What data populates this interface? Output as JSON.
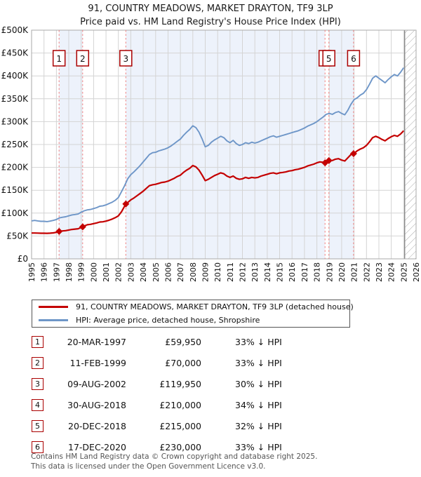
{
  "title": {
    "line1": "91, COUNTRY MEADOWS, MARKET DRAYTON, TF9 3LP",
    "line2": "Price paid vs. HM Land Registry's House Price Index (HPI)"
  },
  "legend": {
    "entries": [
      {
        "label": "91, COUNTRY MEADOWS, MARKET DRAYTON, TF9 3LP (detached house)",
        "color": "#c40000"
      },
      {
        "label": "HPI: Average price, detached house, Shropshire",
        "color": "#6e96c8"
      }
    ]
  },
  "transactions": [
    {
      "n": "1",
      "date": "20-MAR-1997",
      "price": "£59,950",
      "pct": "33% ↓ HPI"
    },
    {
      "n": "2",
      "date": "11-FEB-1999",
      "price": "£70,000",
      "pct": "33% ↓ HPI"
    },
    {
      "n": "3",
      "date": "09-AUG-2002",
      "price": "£119,950",
      "pct": "30% ↓ HPI"
    },
    {
      "n": "4",
      "date": "30-AUG-2018",
      "price": "£210,000",
      "pct": "34% ↓ HPI"
    },
    {
      "n": "5",
      "date": "20-DEC-2018",
      "price": "£215,000",
      "pct": "32% ↓ HPI"
    },
    {
      "n": "6",
      "date": "17-DEC-2020",
      "price": "£230,000",
      "pct": "33% ↓ HPI"
    }
  ],
  "footer": {
    "line1": "Contains HM Land Registry data © Crown copyright and database right 2025.",
    "line2": "This data is licensed under the Open Government Licence v3.0."
  },
  "chart_data": {
    "type": "line",
    "title": "91, COUNTRY MEADOWS, MARKET DRAYTON, TF9 3LP — Price paid vs. HPI",
    "xlabel": "",
    "ylabel": "",
    "x_range": [
      1995,
      2026
    ],
    "y_range_pounds": [
      0,
      500000
    ],
    "x_ticks": [
      1995,
      1996,
      1997,
      1998,
      1999,
      2000,
      2001,
      2002,
      2003,
      2004,
      2005,
      2006,
      2007,
      2008,
      2009,
      2010,
      2011,
      2012,
      2013,
      2014,
      2015,
      2016,
      2017,
      2018,
      2019,
      2020,
      2021,
      2022,
      2023,
      2024,
      2025,
      2026
    ],
    "y_ticks": [
      {
        "value_k": 0,
        "label": "£0"
      },
      {
        "value_k": 50,
        "label": "£50K"
      },
      {
        "value_k": 100,
        "label": "£100K"
      },
      {
        "value_k": 150,
        "label": "£150K"
      },
      {
        "value_k": 200,
        "label": "£200K"
      },
      {
        "value_k": 250,
        "label": "£250K"
      },
      {
        "value_k": 300,
        "label": "£300K"
      },
      {
        "value_k": 350,
        "label": "£350K"
      },
      {
        "value_k": 400,
        "label": "£400K"
      },
      {
        "value_k": 450,
        "label": "£450K"
      },
      {
        "value_k": 500,
        "label": "£500K"
      }
    ],
    "grid": true,
    "legend_position": "below",
    "shaded_ownership_bands": [
      [
        1997.22,
        1999.12
      ],
      [
        2002.6,
        2018.66
      ],
      [
        2018.97,
        2020.96
      ]
    ],
    "hatch_future_region": [
      2025.08,
      2026
    ],
    "sale_markers": [
      {
        "n": "1",
        "x": 1997.22,
        "value_k": 59.95
      },
      {
        "n": "2",
        "x": 1999.12,
        "value_k": 70
      },
      {
        "n": "3",
        "x": 2002.6,
        "value_k": 119.95
      },
      {
        "n": "4",
        "x": 2018.66,
        "value_k": 210
      },
      {
        "n": "5",
        "x": 2018.97,
        "value_k": 215
      },
      {
        "n": "6",
        "x": 2020.96,
        "value_k": 230
      }
    ],
    "series": [
      {
        "name": "91, COUNTRY MEADOWS, MARKET DRAYTON, TF9 3LP (detached house)",
        "color": "#c40000",
        "points_year_valueK": [
          [
            1995.0,
            56.5
          ],
          [
            1995.25,
            56.5
          ],
          [
            1995.5,
            56.3
          ],
          [
            1995.75,
            56
          ],
          [
            1996.0,
            56
          ],
          [
            1996.25,
            55.8
          ],
          [
            1996.5,
            56.2
          ],
          [
            1996.75,
            56.8
          ],
          [
            1997.0,
            58
          ],
          [
            1997.22,
            59.95
          ],
          [
            1997.5,
            61
          ],
          [
            1997.75,
            61.6
          ],
          [
            1998.0,
            63
          ],
          [
            1998.25,
            64.3
          ],
          [
            1998.5,
            65
          ],
          [
            1998.75,
            65.8
          ],
          [
            1999.12,
            70
          ],
          [
            1999.25,
            72
          ],
          [
            1999.5,
            74.5
          ],
          [
            1999.75,
            75.5
          ],
          [
            2000.0,
            77
          ],
          [
            2000.25,
            78.5
          ],
          [
            2000.5,
            80.5
          ],
          [
            2000.75,
            81
          ],
          [
            2001.0,
            82.5
          ],
          [
            2001.25,
            84.5
          ],
          [
            2001.5,
            87
          ],
          [
            2001.75,
            90
          ],
          [
            2002.0,
            94
          ],
          [
            2002.25,
            103
          ],
          [
            2002.6,
            119.95
          ],
          [
            2002.75,
            123
          ],
          [
            2003.0,
            129
          ],
          [
            2003.25,
            133
          ],
          [
            2003.5,
            138
          ],
          [
            2003.75,
            143
          ],
          [
            2004.0,
            148
          ],
          [
            2004.25,
            154
          ],
          [
            2004.5,
            160
          ],
          [
            2004.75,
            162
          ],
          [
            2005.0,
            163
          ],
          [
            2005.25,
            165
          ],
          [
            2005.5,
            167
          ],
          [
            2005.75,
            168
          ],
          [
            2006.0,
            170
          ],
          [
            2006.25,
            173
          ],
          [
            2006.5,
            176
          ],
          [
            2006.75,
            180
          ],
          [
            2007.0,
            183
          ],
          [
            2007.25,
            189
          ],
          [
            2007.5,
            194
          ],
          [
            2007.75,
            198
          ],
          [
            2008.0,
            204
          ],
          [
            2008.25,
            201
          ],
          [
            2008.5,
            194
          ],
          [
            2008.75,
            183
          ],
          [
            2009.0,
            171
          ],
          [
            2009.25,
            174
          ],
          [
            2009.5,
            178
          ],
          [
            2009.75,
            182
          ],
          [
            2010.0,
            185
          ],
          [
            2010.25,
            188
          ],
          [
            2010.5,
            186
          ],
          [
            2010.75,
            181
          ],
          [
            2011.0,
            178
          ],
          [
            2011.25,
            181
          ],
          [
            2011.5,
            176
          ],
          [
            2011.75,
            174
          ],
          [
            2012.0,
            175
          ],
          [
            2012.25,
            178
          ],
          [
            2012.5,
            176
          ],
          [
            2012.75,
            178
          ],
          [
            2013.0,
            177
          ],
          [
            2013.25,
            178
          ],
          [
            2013.5,
            181
          ],
          [
            2013.75,
            183
          ],
          [
            2014.0,
            185
          ],
          [
            2014.25,
            187
          ],
          [
            2014.5,
            188
          ],
          [
            2014.75,
            186
          ],
          [
            2015.0,
            188
          ],
          [
            2015.25,
            189
          ],
          [
            2015.5,
            190
          ],
          [
            2015.75,
            192
          ],
          [
            2016.0,
            193
          ],
          [
            2016.25,
            195
          ],
          [
            2016.5,
            196
          ],
          [
            2016.75,
            198
          ],
          [
            2017.0,
            200
          ],
          [
            2017.25,
            203
          ],
          [
            2017.5,
            205
          ],
          [
            2017.75,
            207
          ],
          [
            2018.0,
            210
          ],
          [
            2018.25,
            212
          ],
          [
            2018.5,
            211
          ],
          [
            2018.66,
            210
          ],
          [
            2018.97,
            215
          ],
          [
            2019.25,
            215
          ],
          [
            2019.5,
            218
          ],
          [
            2019.75,
            219
          ],
          [
            2020.0,
            216
          ],
          [
            2020.25,
            214
          ],
          [
            2020.5,
            221
          ],
          [
            2020.75,
            228
          ],
          [
            2020.96,
            230
          ],
          [
            2021.25,
            236
          ],
          [
            2021.5,
            240
          ],
          [
            2021.75,
            243
          ],
          [
            2022.0,
            248
          ],
          [
            2022.25,
            256
          ],
          [
            2022.5,
            265
          ],
          [
            2022.75,
            268
          ],
          [
            2023.0,
            265
          ],
          [
            2023.25,
            261
          ],
          [
            2023.5,
            258
          ],
          [
            2023.75,
            263
          ],
          [
            2024.0,
            267
          ],
          [
            2024.25,
            270
          ],
          [
            2024.5,
            268
          ],
          [
            2024.75,
            273
          ],
          [
            2025.0,
            280
          ]
        ]
      },
      {
        "name": "HPI: Average price, detached house, Shropshire",
        "color": "#6e96c8",
        "points_year_valueK": [
          [
            1995.0,
            83
          ],
          [
            1995.25,
            84
          ],
          [
            1995.5,
            83
          ],
          [
            1995.75,
            82
          ],
          [
            1996.0,
            82
          ],
          [
            1996.25,
            81.5
          ],
          [
            1996.5,
            82.5
          ],
          [
            1996.75,
            84
          ],
          [
            1997.0,
            86
          ],
          [
            1997.25,
            89.5
          ],
          [
            1997.5,
            91
          ],
          [
            1997.75,
            92
          ],
          [
            1998.0,
            94
          ],
          [
            1998.25,
            96
          ],
          [
            1998.5,
            97
          ],
          [
            1998.75,
            98
          ],
          [
            1999.0,
            102
          ],
          [
            1999.25,
            105
          ],
          [
            1999.5,
            107
          ],
          [
            1999.75,
            108
          ],
          [
            2000.0,
            110
          ],
          [
            2000.25,
            112
          ],
          [
            2000.5,
            115
          ],
          [
            2000.75,
            116
          ],
          [
            2001.0,
            118
          ],
          [
            2001.25,
            121
          ],
          [
            2001.5,
            124
          ],
          [
            2001.75,
            128
          ],
          [
            2002.0,
            134
          ],
          [
            2002.25,
            147
          ],
          [
            2002.5,
            160
          ],
          [
            2002.75,
            175
          ],
          [
            2003.0,
            184
          ],
          [
            2003.25,
            190
          ],
          [
            2003.5,
            197
          ],
          [
            2003.75,
            204
          ],
          [
            2004.0,
            212
          ],
          [
            2004.25,
            220
          ],
          [
            2004.5,
            228
          ],
          [
            2004.75,
            232
          ],
          [
            2005.0,
            233
          ],
          [
            2005.25,
            236
          ],
          [
            2005.5,
            238
          ],
          [
            2005.75,
            240
          ],
          [
            2006.0,
            243
          ],
          [
            2006.25,
            247
          ],
          [
            2006.5,
            252
          ],
          [
            2006.75,
            257
          ],
          [
            2007.0,
            262
          ],
          [
            2007.25,
            270
          ],
          [
            2007.5,
            277
          ],
          [
            2007.75,
            283
          ],
          [
            2008.0,
            291
          ],
          [
            2008.25,
            287
          ],
          [
            2008.5,
            277
          ],
          [
            2008.75,
            262
          ],
          [
            2009.0,
            245
          ],
          [
            2009.25,
            248
          ],
          [
            2009.5,
            255
          ],
          [
            2009.75,
            260
          ],
          [
            2010.0,
            264
          ],
          [
            2010.25,
            268
          ],
          [
            2010.5,
            265
          ],
          [
            2010.75,
            258
          ],
          [
            2011.0,
            254
          ],
          [
            2011.25,
            259
          ],
          [
            2011.5,
            252
          ],
          [
            2011.75,
            248
          ],
          [
            2012.0,
            250
          ],
          [
            2012.25,
            254
          ],
          [
            2012.5,
            252
          ],
          [
            2012.75,
            255
          ],
          [
            2013.0,
            253
          ],
          [
            2013.25,
            255
          ],
          [
            2013.5,
            258
          ],
          [
            2013.75,
            261
          ],
          [
            2014.0,
            264
          ],
          [
            2014.25,
            267
          ],
          [
            2014.5,
            269
          ],
          [
            2014.75,
            266
          ],
          [
            2015.0,
            268
          ],
          [
            2015.25,
            270
          ],
          [
            2015.5,
            272
          ],
          [
            2015.75,
            274
          ],
          [
            2016.0,
            276
          ],
          [
            2016.25,
            278
          ],
          [
            2016.5,
            280
          ],
          [
            2016.75,
            283
          ],
          [
            2017.0,
            286
          ],
          [
            2017.25,
            290
          ],
          [
            2017.5,
            293
          ],
          [
            2017.75,
            296
          ],
          [
            2018.0,
            300
          ],
          [
            2018.25,
            305
          ],
          [
            2018.5,
            310
          ],
          [
            2018.75,
            316
          ],
          [
            2019.0,
            318
          ],
          [
            2019.25,
            316
          ],
          [
            2019.5,
            320
          ],
          [
            2019.75,
            322
          ],
          [
            2020.0,
            318
          ],
          [
            2020.25,
            315
          ],
          [
            2020.5,
            325
          ],
          [
            2020.75,
            338
          ],
          [
            2021.0,
            348
          ],
          [
            2021.25,
            352
          ],
          [
            2021.5,
            358
          ],
          [
            2021.75,
            362
          ],
          [
            2022.0,
            370
          ],
          [
            2022.25,
            382
          ],
          [
            2022.5,
            395
          ],
          [
            2022.75,
            400
          ],
          [
            2023.0,
            395
          ],
          [
            2023.25,
            390
          ],
          [
            2023.5,
            385
          ],
          [
            2023.75,
            392
          ],
          [
            2024.0,
            398
          ],
          [
            2024.25,
            403
          ],
          [
            2024.5,
            400
          ],
          [
            2024.75,
            408
          ],
          [
            2025.0,
            418
          ]
        ]
      }
    ],
    "colors": {
      "price_line": "#c40000",
      "hpi_line": "#6e96c8",
      "sale_dashed_line": "#f08080",
      "ownership_band": "#edf2fb",
      "grid": "#d4d4d4",
      "plot_border": "#aaaaaa",
      "hatch": "#aaaaaa",
      "number_box_border": "#aa0000"
    }
  }
}
